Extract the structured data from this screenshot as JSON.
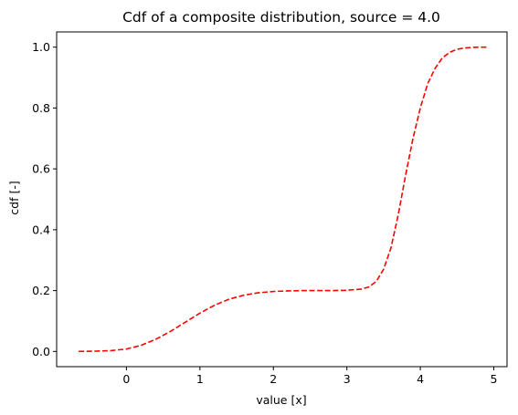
{
  "chart_data": {
    "type": "line",
    "title": "Cdf of a composite distribution, source = 4.0",
    "xlabel": "value [x]",
    "ylabel": "cdf [-]",
    "xlim": [
      -0.95,
      5.18
    ],
    "ylim": [
      -0.05,
      1.05
    ],
    "xticks": [
      0,
      1,
      2,
      3,
      4,
      5
    ],
    "yticks": [
      0.0,
      0.2,
      0.4,
      0.6,
      0.8,
      1.0
    ],
    "xtick_labels": [
      "0",
      "1",
      "2",
      "3",
      "4",
      "5"
    ],
    "ytick_labels": [
      "0.0",
      "0.2",
      "0.4",
      "0.6",
      "0.8",
      "1.0"
    ],
    "grid": false,
    "series": [
      {
        "color": "#ff0000",
        "linestyle": "dashed",
        "x": [
          -0.65,
          -0.4,
          -0.2,
          0.0,
          0.2,
          0.4,
          0.6,
          0.8,
          1.0,
          1.2,
          1.4,
          1.6,
          1.8,
          2.0,
          2.2,
          2.4,
          2.6,
          2.8,
          3.0,
          3.2,
          3.3,
          3.4,
          3.5,
          3.6,
          3.7,
          3.8,
          3.9,
          4.0,
          4.1,
          4.2,
          4.3,
          4.4,
          4.5,
          4.6,
          4.7,
          4.8,
          4.9
        ],
        "y": [
          0.0,
          0.001,
          0.003,
          0.008,
          0.02,
          0.04,
          0.066,
          0.096,
          0.126,
          0.152,
          0.172,
          0.185,
          0.193,
          0.197,
          0.199,
          0.2,
          0.2,
          0.2,
          0.201,
          0.205,
          0.212,
          0.23,
          0.27,
          0.34,
          0.45,
          0.58,
          0.7,
          0.8,
          0.88,
          0.93,
          0.965,
          0.983,
          0.993,
          0.997,
          0.999,
          1.0,
          1.0
        ]
      }
    ]
  }
}
